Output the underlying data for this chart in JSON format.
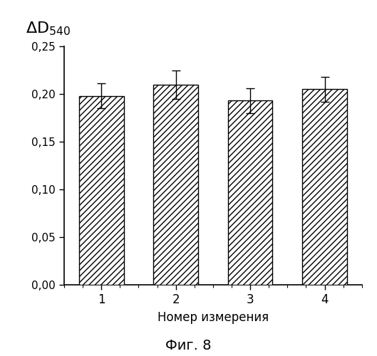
{
  "categories": [
    "1",
    "2",
    "3",
    "4"
  ],
  "values": [
    0.198,
    0.21,
    0.193,
    0.205
  ],
  "errors": [
    0.013,
    0.015,
    0.013,
    0.013
  ],
  "bar_color": "#ffffff",
  "bar_edgecolor": "#000000",
  "hatch": "////",
  "xlabel": "Номер измерения",
  "caption": "Фиг. 8",
  "ylim": [
    0.0,
    0.25
  ],
  "yticks": [
    0.0,
    0.05,
    0.1,
    0.15,
    0.2,
    0.25
  ],
  "bar_width": 0.6,
  "background_color": "#ffffff",
  "figsize": [
    5.29,
    5.0
  ],
  "dpi": 100
}
